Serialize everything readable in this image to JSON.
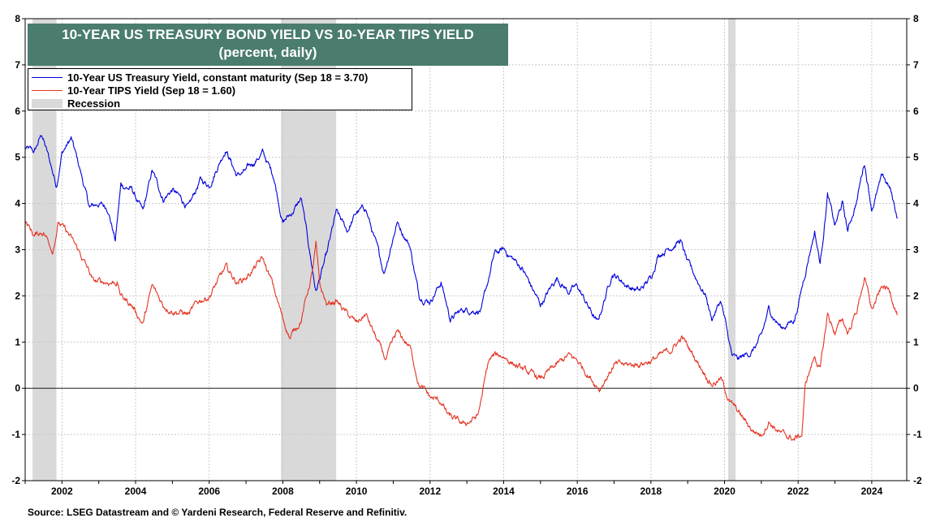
{
  "chart_data": {
    "type": "line",
    "title": "10-YEAR US TREASURY BOND YIELD VS 10-YEAR TIPS YIELD",
    "subtitle": "(percent, daily)",
    "xlim": [
      2001.0,
      2024.95
    ],
    "ylim": [
      -2,
      8
    ],
    "x_ticks": [
      "2002",
      "2004",
      "2006",
      "2008",
      "2010",
      "2012",
      "2014",
      "2016",
      "2018",
      "2020",
      "2022",
      "2024"
    ],
    "y_ticks": [
      "-2",
      "-1",
      "0",
      "1",
      "2",
      "3",
      "4",
      "5",
      "6",
      "7",
      "8"
    ],
    "grid": true,
    "legend_position": "top-left",
    "recessions": [
      [
        2001.2,
        2001.85
      ],
      [
        2007.95,
        2009.45
      ],
      [
        2020.1,
        2020.3
      ]
    ],
    "series": [
      {
        "name": "10-Year US Treasury Yield, constant maturity (Sep 18 = 3.70)",
        "color": "#0000dd",
        "points": [
          [
            2001.0,
            5.2
          ],
          [
            2001.25,
            5.1
          ],
          [
            2001.45,
            5.5
          ],
          [
            2001.6,
            5.1
          ],
          [
            2001.85,
            4.4
          ],
          [
            2002.0,
            5.1
          ],
          [
            2002.25,
            5.4
          ],
          [
            2002.5,
            4.7
          ],
          [
            2002.75,
            3.9
          ],
          [
            2003.0,
            4.0
          ],
          [
            2003.25,
            3.9
          ],
          [
            2003.45,
            3.2
          ],
          [
            2003.6,
            4.4
          ],
          [
            2003.9,
            4.3
          ],
          [
            2004.2,
            3.8
          ],
          [
            2004.45,
            4.7
          ],
          [
            2004.75,
            4.1
          ],
          [
            2005.0,
            4.3
          ],
          [
            2005.45,
            3.9
          ],
          [
            2005.75,
            4.5
          ],
          [
            2006.0,
            4.4
          ],
          [
            2006.45,
            5.2
          ],
          [
            2006.75,
            4.6
          ],
          [
            2007.0,
            4.7
          ],
          [
            2007.45,
            5.1
          ],
          [
            2007.75,
            4.6
          ],
          [
            2008.0,
            3.6
          ],
          [
            2008.25,
            3.8
          ],
          [
            2008.5,
            4.1
          ],
          [
            2008.9,
            2.1
          ],
          [
            2009.2,
            2.9
          ],
          [
            2009.45,
            3.8
          ],
          [
            2009.75,
            3.4
          ],
          [
            2010.0,
            3.8
          ],
          [
            2010.25,
            3.9
          ],
          [
            2010.75,
            2.5
          ],
          [
            2011.1,
            3.6
          ],
          [
            2011.45,
            3.1
          ],
          [
            2011.7,
            2.0
          ],
          [
            2012.0,
            1.9
          ],
          [
            2012.3,
            2.3
          ],
          [
            2012.55,
            1.5
          ],
          [
            2012.9,
            1.7
          ],
          [
            2013.4,
            1.7
          ],
          [
            2013.75,
            2.9
          ],
          [
            2014.0,
            3.0
          ],
          [
            2014.5,
            2.6
          ],
          [
            2015.0,
            1.8
          ],
          [
            2015.45,
            2.4
          ],
          [
            2015.75,
            2.1
          ],
          [
            2016.0,
            2.2
          ],
          [
            2016.55,
            1.4
          ],
          [
            2016.95,
            2.5
          ],
          [
            2017.4,
            2.2
          ],
          [
            2017.7,
            2.1
          ],
          [
            2018.0,
            2.4
          ],
          [
            2018.2,
            2.9
          ],
          [
            2018.8,
            3.2
          ],
          [
            2019.0,
            2.7
          ],
          [
            2019.5,
            2.0
          ],
          [
            2019.65,
            1.5
          ],
          [
            2019.9,
            1.9
          ],
          [
            2020.2,
            0.7
          ],
          [
            2020.35,
            0.6
          ],
          [
            2020.75,
            0.8
          ],
          [
            2021.0,
            1.1
          ],
          [
            2021.2,
            1.7
          ],
          [
            2021.55,
            1.3
          ],
          [
            2021.9,
            1.5
          ],
          [
            2022.0,
            1.8
          ],
          [
            2022.3,
            2.9
          ],
          [
            2022.45,
            3.4
          ],
          [
            2022.6,
            2.7
          ],
          [
            2022.8,
            4.2
          ],
          [
            2023.0,
            3.5
          ],
          [
            2023.2,
            4.0
          ],
          [
            2023.35,
            3.4
          ],
          [
            2023.6,
            4.1
          ],
          [
            2023.8,
            4.9
          ],
          [
            2024.0,
            3.9
          ],
          [
            2024.3,
            4.6
          ],
          [
            2024.5,
            4.3
          ],
          [
            2024.7,
            3.7
          ]
        ]
      },
      {
        "name": "10-Year TIPS Yield (Sep 18 = 1.60)",
        "color": "#e53322",
        "points": [
          [
            2001.0,
            3.6
          ],
          [
            2001.25,
            3.3
          ],
          [
            2001.5,
            3.4
          ],
          [
            2001.75,
            3.0
          ],
          [
            2001.9,
            3.6
          ],
          [
            2002.2,
            3.3
          ],
          [
            2002.5,
            2.9
          ],
          [
            2002.75,
            2.5
          ],
          [
            2002.85,
            2.3
          ],
          [
            2003.5,
            2.3
          ],
          [
            2003.6,
            2.0
          ],
          [
            2003.9,
            1.8
          ],
          [
            2004.2,
            1.4
          ],
          [
            2004.45,
            2.2
          ],
          [
            2004.75,
            1.8
          ],
          [
            2005.0,
            1.7
          ],
          [
            2005.45,
            1.6
          ],
          [
            2005.75,
            1.9
          ],
          [
            2006.0,
            2.0
          ],
          [
            2006.45,
            2.6
          ],
          [
            2006.75,
            2.3
          ],
          [
            2007.0,
            2.4
          ],
          [
            2007.45,
            2.8
          ],
          [
            2007.7,
            2.3
          ],
          [
            2008.0,
            1.5
          ],
          [
            2008.2,
            1.1
          ],
          [
            2008.5,
            1.5
          ],
          [
            2008.8,
            2.5
          ],
          [
            2008.9,
            3.1
          ],
          [
            2009.0,
            2.2
          ],
          [
            2009.2,
            1.8
          ],
          [
            2009.45,
            1.9
          ],
          [
            2009.75,
            1.6
          ],
          [
            2010.0,
            1.4
          ],
          [
            2010.25,
            1.6
          ],
          [
            2010.8,
            0.6
          ],
          [
            2011.1,
            1.2
          ],
          [
            2011.45,
            0.9
          ],
          [
            2011.7,
            0.1
          ],
          [
            2012.0,
            -0.2
          ],
          [
            2012.3,
            -0.3
          ],
          [
            2012.5,
            -0.6
          ],
          [
            2012.9,
            -0.8
          ],
          [
            2013.3,
            -0.6
          ],
          [
            2013.6,
            0.6
          ],
          [
            2013.75,
            0.7
          ],
          [
            2014.0,
            0.7
          ],
          [
            2014.5,
            0.4
          ],
          [
            2015.0,
            0.2
          ],
          [
            2015.45,
            0.5
          ],
          [
            2015.75,
            0.7
          ],
          [
            2016.0,
            0.6
          ],
          [
            2016.6,
            0.0
          ],
          [
            2017.0,
            0.5
          ],
          [
            2017.5,
            0.5
          ],
          [
            2018.0,
            0.6
          ],
          [
            2018.5,
            0.8
          ],
          [
            2018.85,
            1.1
          ],
          [
            2019.0,
            0.9
          ],
          [
            2019.5,
            0.3
          ],
          [
            2019.65,
            0.1
          ],
          [
            2019.9,
            0.2
          ],
          [
            2020.15,
            -0.3
          ],
          [
            2020.35,
            -0.5
          ],
          [
            2020.75,
            -0.9
          ],
          [
            2021.0,
            -1.0
          ],
          [
            2021.2,
            -0.7
          ],
          [
            2021.55,
            -1.0
          ],
          [
            2021.9,
            -1.1
          ],
          [
            2022.1,
            -1.0
          ],
          [
            2022.2,
            0.1
          ],
          [
            2022.45,
            0.7
          ],
          [
            2022.6,
            0.4
          ],
          [
            2022.8,
            1.6
          ],
          [
            2023.0,
            1.2
          ],
          [
            2023.2,
            1.5
          ],
          [
            2023.35,
            1.2
          ],
          [
            2023.6,
            1.7
          ],
          [
            2023.8,
            2.4
          ],
          [
            2024.0,
            1.7
          ],
          [
            2024.3,
            2.2
          ],
          [
            2024.5,
            2.1
          ],
          [
            2024.7,
            1.6
          ]
        ]
      }
    ]
  },
  "header": {
    "title": "10-YEAR US TREASURY BOND YIELD VS 10-YEAR TIPS YIELD",
    "subtitle": "(percent, daily)"
  },
  "legend": {
    "treasury_label": "10-Year US Treasury Yield, constant maturity (Sep 18 = 3.70)",
    "tips_label": "10-Year TIPS Yield (Sep 18 = 1.60)",
    "recession_label": "Recession",
    "recession_color": "#d9d9d9"
  },
  "footer": {
    "source": "Source: LSEG Datastream and © Yardeni Research, Federal Reserve and Refinitiv."
  }
}
